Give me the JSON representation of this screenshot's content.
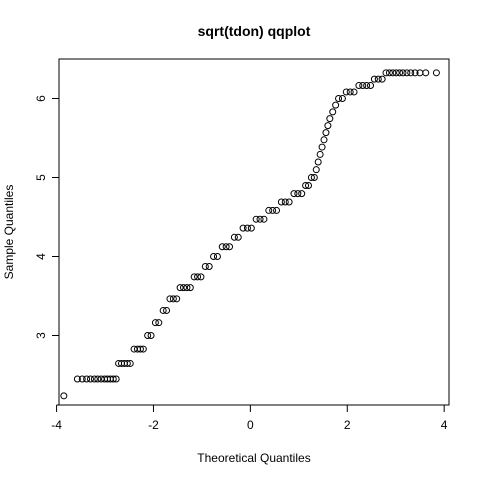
{
  "chart_data": {
    "type": "scatter",
    "title": "sqrt(tdon) qqplot",
    "xlabel": "Theoretical Quantiles",
    "ylabel": "Sample Quantiles",
    "xlim": [
      -3.95,
      4.1
    ],
    "ylim": [
      2.12,
      6.5
    ],
    "xticks": [
      -4,
      -2,
      0,
      2,
      4
    ],
    "yticks": [
      3,
      4,
      5,
      6
    ],
    "marker": "open-circle",
    "series": [
      {
        "points": [
          [
            -3.85,
            2.236
          ],
          [
            -3.57,
            2.449
          ],
          [
            -3.47,
            2.449
          ],
          [
            -3.38,
            2.449
          ],
          [
            -3.3,
            2.449
          ],
          [
            -3.22,
            2.449
          ],
          [
            -3.15,
            2.449
          ],
          [
            -3.08,
            2.449
          ],
          [
            -3.01,
            2.449
          ],
          [
            -2.95,
            2.449
          ],
          [
            -2.89,
            2.449
          ],
          [
            -2.83,
            2.449
          ],
          [
            -2.77,
            2.449
          ],
          [
            -2.72,
            2.646
          ],
          [
            -2.66,
            2.646
          ],
          [
            -2.6,
            2.646
          ],
          [
            -2.54,
            2.646
          ],
          [
            -2.48,
            2.646
          ],
          [
            -2.4,
            2.828
          ],
          [
            -2.33,
            2.828
          ],
          [
            -2.27,
            2.828
          ],
          [
            -2.21,
            2.828
          ],
          [
            -2.12,
            3.0
          ],
          [
            -2.05,
            3.0
          ],
          [
            -1.96,
            3.162
          ],
          [
            -1.89,
            3.162
          ],
          [
            -1.8,
            3.317
          ],
          [
            -1.73,
            3.317
          ],
          [
            -1.66,
            3.464
          ],
          [
            -1.59,
            3.464
          ],
          [
            -1.52,
            3.464
          ],
          [
            -1.45,
            3.606
          ],
          [
            -1.38,
            3.606
          ],
          [
            -1.31,
            3.606
          ],
          [
            -1.24,
            3.606
          ],
          [
            -1.16,
            3.742
          ],
          [
            -1.09,
            3.742
          ],
          [
            -1.02,
            3.742
          ],
          [
            -0.93,
            3.873
          ],
          [
            -0.85,
            3.873
          ],
          [
            -0.76,
            4.0
          ],
          [
            -0.68,
            4.0
          ],
          [
            -0.58,
            4.123
          ],
          [
            -0.5,
            4.123
          ],
          [
            -0.43,
            4.123
          ],
          [
            -0.33,
            4.243
          ],
          [
            -0.25,
            4.243
          ],
          [
            -0.15,
            4.359
          ],
          [
            -0.06,
            4.359
          ],
          [
            0.02,
            4.359
          ],
          [
            0.12,
            4.472
          ],
          [
            0.2,
            4.472
          ],
          [
            0.28,
            4.472
          ],
          [
            0.38,
            4.583
          ],
          [
            0.46,
            4.583
          ],
          [
            0.54,
            4.583
          ],
          [
            0.64,
            4.69
          ],
          [
            0.72,
            4.69
          ],
          [
            0.8,
            4.69
          ],
          [
            0.9,
            4.796
          ],
          [
            0.98,
            4.796
          ],
          [
            1.06,
            4.796
          ],
          [
            1.14,
            4.899
          ],
          [
            1.2,
            4.899
          ],
          [
            1.26,
            5.0
          ],
          [
            1.32,
            5.0
          ],
          [
            1.36,
            5.099
          ],
          [
            1.4,
            5.196
          ],
          [
            1.44,
            5.292
          ],
          [
            1.48,
            5.385
          ],
          [
            1.52,
            5.477
          ],
          [
            1.56,
            5.568
          ],
          [
            1.6,
            5.657
          ],
          [
            1.64,
            5.745
          ],
          [
            1.7,
            5.831
          ],
          [
            1.76,
            5.916
          ],
          [
            1.82,
            6.0
          ],
          [
            1.9,
            6.0
          ],
          [
            1.98,
            6.083
          ],
          [
            2.06,
            6.083
          ],
          [
            2.14,
            6.083
          ],
          [
            2.24,
            6.164
          ],
          [
            2.32,
            6.164
          ],
          [
            2.4,
            6.164
          ],
          [
            2.48,
            6.164
          ],
          [
            2.56,
            6.245
          ],
          [
            2.64,
            6.245
          ],
          [
            2.72,
            6.245
          ],
          [
            2.8,
            6.325
          ],
          [
            2.87,
            6.325
          ],
          [
            2.94,
            6.325
          ],
          [
            3.01,
            6.325
          ],
          [
            3.08,
            6.325
          ],
          [
            3.15,
            6.325
          ],
          [
            3.23,
            6.325
          ],
          [
            3.31,
            6.325
          ],
          [
            3.4,
            6.325
          ],
          [
            3.5,
            6.325
          ],
          [
            3.62,
            6.325
          ],
          [
            3.84,
            6.325
          ]
        ]
      }
    ]
  }
}
